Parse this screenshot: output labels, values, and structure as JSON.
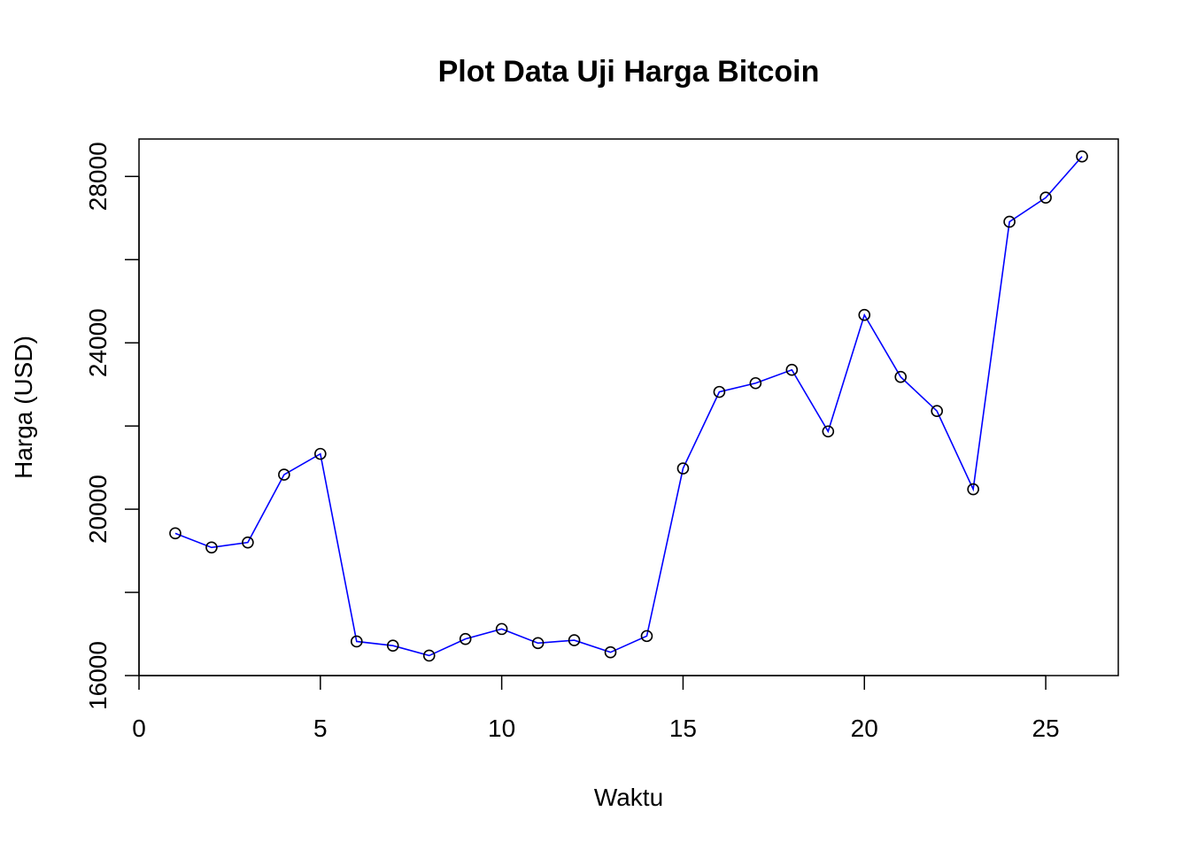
{
  "chart_data": {
    "type": "line",
    "title": "Plot Data Uji Harga Bitcoin",
    "xlabel": "Waktu",
    "ylabel": "Harga (USD)",
    "xlim": [
      0,
      27
    ],
    "ylim": [
      16000,
      28900
    ],
    "xticks": [
      0,
      5,
      10,
      15,
      20,
      25
    ],
    "yticks": [
      16000,
      18000,
      20000,
      22000,
      24000,
      26000,
      28000
    ],
    "ytick_labels": [
      "16000",
      "",
      "20000",
      "",
      "24000",
      "",
      "28000"
    ],
    "grid": false,
    "line_color": "#0000ff",
    "marker_color": "#000000",
    "marker": "open-circle",
    "series": [
      {
        "x": [
          1,
          2,
          3,
          4,
          5,
          6,
          7,
          8,
          9,
          10,
          11,
          12,
          13,
          14,
          15,
          16,
          17,
          18,
          19,
          20,
          21,
          22,
          23,
          24,
          25,
          26
        ],
        "values": [
          19420,
          19080,
          19200,
          20830,
          21330,
          16820,
          16720,
          16480,
          16880,
          17120,
          16780,
          16850,
          16560,
          16950,
          20980,
          22820,
          23030,
          23350,
          21870,
          24670,
          23180,
          22360,
          20480,
          26910,
          27490,
          28480
        ]
      }
    ]
  }
}
